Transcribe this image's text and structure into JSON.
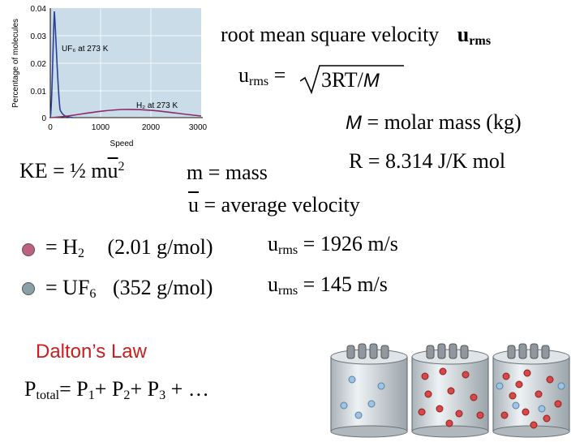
{
  "graph": {
    "y_axis_title": "Percentage of molecules",
    "x_axis_title": "Speed",
    "y_ticks": [
      "0.04",
      "0.03",
      "0.02",
      "0.01",
      "0"
    ],
    "x_ticks": [
      "0",
      "1000",
      "2000",
      "3000"
    ],
    "uf6_label": "UF₆ at 273 K",
    "h2_label": "H₂ at 273 K",
    "colors": {
      "bg": "#c9dce8",
      "uf6": "#2a3f99",
      "h2": "#8b2a6b"
    }
  },
  "title": {
    "text": "root mean square velocity",
    "symbol": "u",
    "symbol_sub": "rms"
  },
  "formula": {
    "lhs": "u",
    "lhs_sub": "rms",
    "eq": "=",
    "radicand": "3RT/",
    "M": "M"
  },
  "molar_mass": {
    "M": "M",
    "text": " = molar mass (kg)"
  },
  "gas_constant": {
    "text": "R = 8.314 J/K mol"
  },
  "ke": {
    "lhs": "KE = ½ m",
    "u": "u",
    "exp": "2"
  },
  "mass_def": {
    "text": "m = mass"
  },
  "avg_def": {
    "u": "u",
    "text": " = average velocity"
  },
  "h2": {
    "eq": "= H",
    "sub": "2",
    "mass": "(2.01 g/mol)",
    "u": "u",
    "u_sub": "rms",
    "value": "= 1926 m/s"
  },
  "uf6": {
    "eq": "= UF",
    "sub": "6",
    "mass": "(352 g/mol)",
    "u": "u",
    "u_sub": "rms",
    "value": "= 145 m/s"
  },
  "dalton": {
    "title": "Dalton’s Law",
    "p": "P",
    "total": "total",
    "eq": "= P",
    "one": "1",
    "plus2": "+ P",
    "two": "2",
    "plus3": "+ P",
    "three": "3",
    "tail": "+ …"
  },
  "legend_colors": {
    "h2": "#c06080",
    "uf6": "#8aa0a8",
    "blue_molecule": "#9cc4e8",
    "red_molecule": "#d94848"
  }
}
